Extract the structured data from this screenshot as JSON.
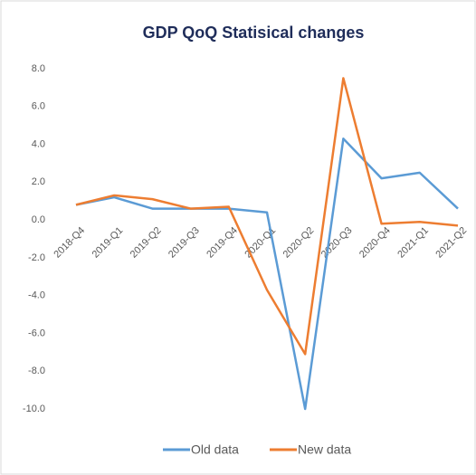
{
  "chart_data": {
    "type": "line",
    "title": "GDP QoQ Statisical changes",
    "categories": [
      "2018-Q4",
      "2019-Q1",
      "2019-Q2",
      "2019-Q3",
      "2019-Q4",
      "2020-Q1",
      "2020-Q2",
      "2020-Q3",
      "2020-Q4",
      "2021-Q1",
      "2021-Q2"
    ],
    "series": [
      {
        "name": "Old data",
        "color": "#5b9bd5",
        "values": [
          0.8,
          1.2,
          0.6,
          0.6,
          0.6,
          0.4,
          -10.0,
          4.3,
          2.2,
          2.5,
          0.6
        ]
      },
      {
        "name": "New data",
        "color": "#ed7d31",
        "values": [
          0.8,
          1.3,
          1.1,
          0.6,
          0.7,
          -3.7,
          -7.1,
          7.5,
          -0.2,
          -0.1,
          -0.3
        ]
      }
    ],
    "ylim": [
      -10,
      8
    ],
    "yticks": [
      {
        "value": -10,
        "label": "-10.0"
      },
      {
        "value": -8,
        "label": "-8.0"
      },
      {
        "value": -6,
        "label": "-6.0"
      },
      {
        "value": -4,
        "label": "-4.0"
      },
      {
        "value": -2,
        "label": "-2.0"
      },
      {
        "value": 0,
        "label": "0.0"
      },
      {
        "value": 2,
        "label": "2.0"
      },
      {
        "value": 4,
        "label": "4.0"
      },
      {
        "value": 6,
        "label": "6.0"
      },
      {
        "value": 8,
        "label": "8.0"
      }
    ],
    "grid": false,
    "legend": "bottom"
  }
}
